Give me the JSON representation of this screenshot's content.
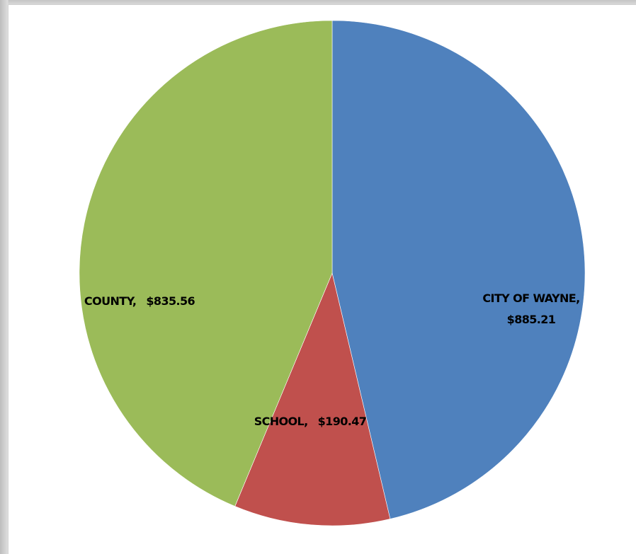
{
  "chart_data": {
    "type": "pie",
    "categories": [
      "CITY OF WAYNE,",
      "SCHOOL,",
      "COUNTY,"
    ],
    "values": [
      885.21,
      190.47,
      835.56
    ],
    "value_labels": [
      "$885.21",
      "$190.47",
      "$835.56"
    ],
    "colors": [
      "#4f81bd",
      "#c0504d",
      "#9bbb59"
    ]
  }
}
